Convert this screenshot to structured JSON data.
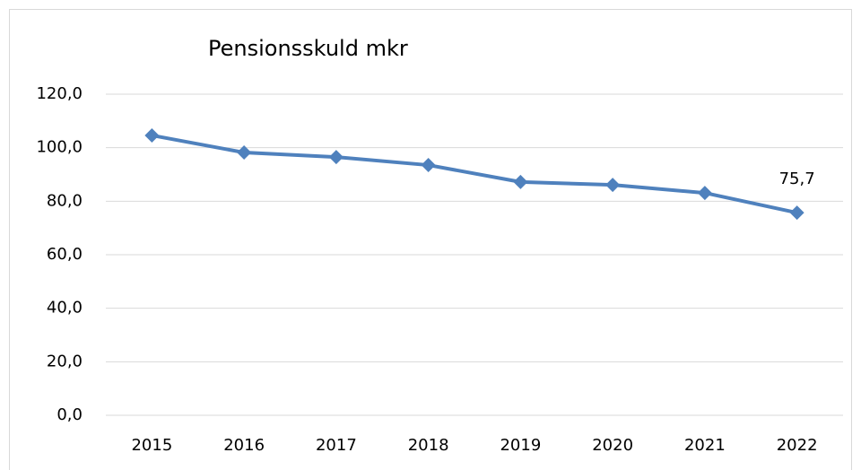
{
  "chart_data": {
    "type": "line",
    "title": "Pensionsskuld mkr",
    "categories": [
      "2015",
      "2016",
      "2017",
      "2018",
      "2019",
      "2020",
      "2021",
      "2022"
    ],
    "series": [
      {
        "name": "Pensionsskuld mkr",
        "color": "#4f81bd",
        "values": [
          104.6,
          98.2,
          96.5,
          93.5,
          87.2,
          86.1,
          83.1,
          75.7
        ],
        "value_labels": [
          null,
          null,
          null,
          null,
          null,
          null,
          null,
          "75,7"
        ]
      }
    ],
    "ylim": [
      0,
      120
    ],
    "yticks": [
      {
        "value": 0,
        "label": "0,0"
      },
      {
        "value": 20,
        "label": "20,0"
      },
      {
        "value": 40,
        "label": "40,0"
      },
      {
        "value": 60,
        "label": "60,0"
      },
      {
        "value": 80,
        "label": "80,0"
      },
      {
        "value": 100,
        "label": "100,0"
      },
      {
        "value": 120,
        "label": "120,0"
      }
    ],
    "grid": true
  }
}
